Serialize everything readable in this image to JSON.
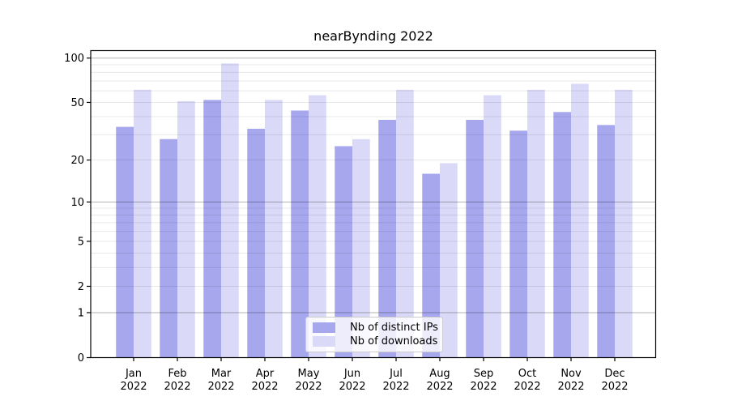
{
  "chart_data": {
    "type": "bar",
    "title": "nearBynding 2022",
    "categories": [
      "Jan\n2022",
      "Feb\n2022",
      "Mar\n2022",
      "Apr\n2022",
      "May\n2022",
      "Jun\n2022",
      "Jul\n2022",
      "Aug\n2022",
      "Sep\n2022",
      "Oct\n2022",
      "Nov\n2022",
      "Dec\n2022"
    ],
    "series": [
      {
        "name": "Nb of distinct IPs",
        "color": "#a7a7ee",
        "values": [
          34,
          28,
          52,
          33,
          44,
          25,
          38,
          16,
          38,
          32,
          43,
          35
        ]
      },
      {
        "name": "Nb of downloads",
        "color": "#dadaf8",
        "values": [
          61,
          51,
          92,
          52,
          56,
          28,
          61,
          19,
          56,
          61,
          67,
          61
        ]
      }
    ],
    "xlabel": "",
    "ylabel": "",
    "y_scale": "log10(1+x)",
    "y_ticks": [
      0,
      1,
      2,
      5,
      10,
      20,
      50,
      100
    ],
    "y_major_gridlines": [
      1,
      10,
      100
    ],
    "y_minor_gridlines": [
      2,
      3,
      4,
      5,
      6,
      7,
      8,
      9,
      20,
      30,
      40,
      50,
      60,
      70,
      80,
      90
    ],
    "ylim": [
      0,
      112
    ],
    "grid": true,
    "legend_position": "bottom-center-inside"
  }
}
